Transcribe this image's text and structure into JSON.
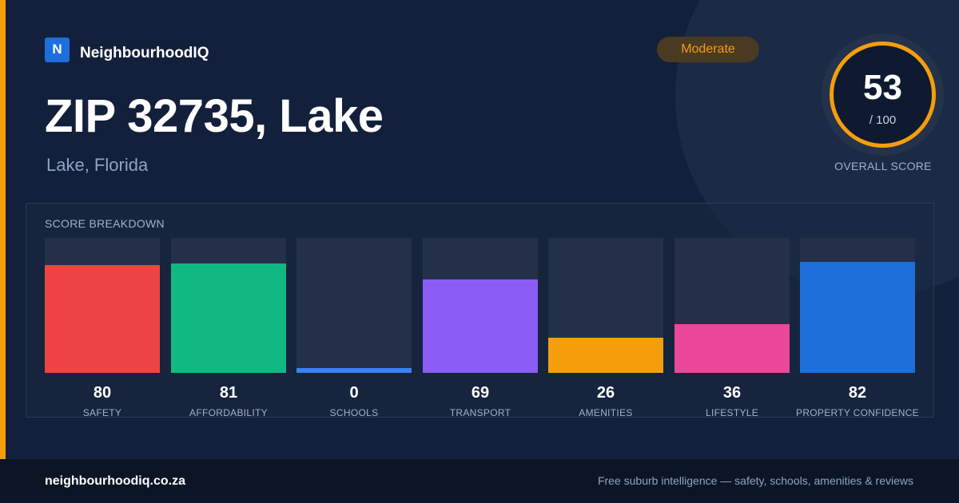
{
  "brand": {
    "logo_letter": "N",
    "name": "NeighbourhoodIQ"
  },
  "location": {
    "title": "ZIP 32735, Lake",
    "subtitle": "Lake, Florida"
  },
  "rating_badge": {
    "label": "Moderate",
    "color": "#f59e0b"
  },
  "overall_score": {
    "value": "53",
    "max_label": "/ 100",
    "caption": "OVERALL SCORE",
    "fraction": 0.53
  },
  "breakdown": {
    "title": "SCORE BREAKDOWN",
    "max": 100,
    "items": [
      {
        "label": "SAFETY",
        "value": 80,
        "color": "#ef4444"
      },
      {
        "label": "AFFORDABILITY",
        "value": 81,
        "color": "#10b981"
      },
      {
        "label": "SCHOOLS",
        "value": 0,
        "color": "#3b82f6"
      },
      {
        "label": "TRANSPORT",
        "value": 69,
        "color": "#8b5cf6"
      },
      {
        "label": "AMENITIES",
        "value": 26,
        "color": "#f59e0b"
      },
      {
        "label": "LIFESTYLE",
        "value": 36,
        "color": "#ec4899"
      },
      {
        "label": "PROPERTY CONFIDENCE",
        "value": 82,
        "color": "#1d6fdc"
      }
    ]
  },
  "footer": {
    "domain": "neighbourhoodiq.co.za",
    "tagline": "Free suburb intelligence — safety, schools, amenities & reviews"
  }
}
